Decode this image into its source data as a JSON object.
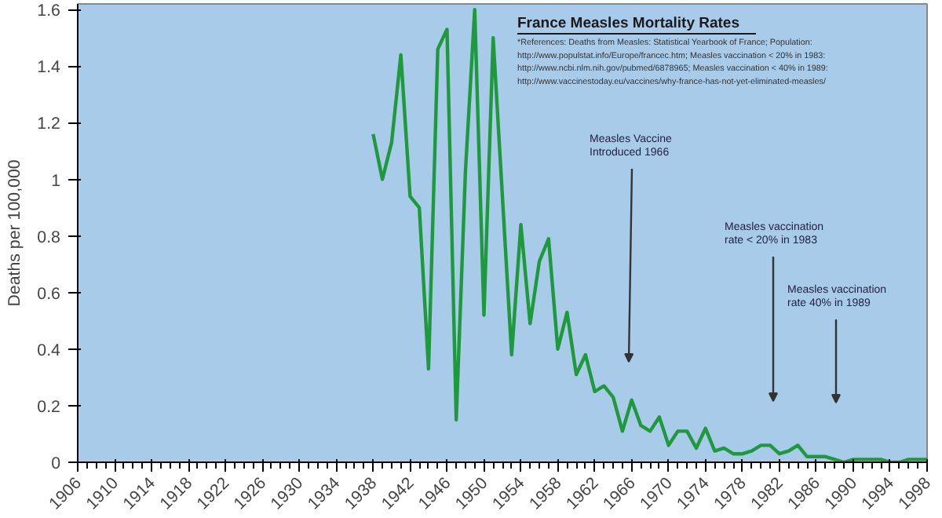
{
  "chart_data": {
    "type": "line",
    "title": "France Measles Mortality Rates",
    "ylabel": "Deaths per 100,000",
    "x": [
      1938,
      1939,
      1940,
      1941,
      1942,
      1943,
      1944,
      1945,
      1946,
      1947,
      1948,
      1949,
      1950,
      1951,
      1953,
      1954,
      1955,
      1956,
      1957,
      1958,
      1959,
      1960,
      1961,
      1962,
      1963,
      1964,
      1965,
      1966,
      1967,
      1968,
      1969,
      1970,
      1971,
      1972,
      1973,
      1974,
      1975,
      1976,
      1977,
      1978,
      1979,
      1980,
      1981,
      1982,
      1983,
      1984,
      1985,
      1986,
      1987,
      1988,
      1989,
      1990,
      1991,
      1992,
      1993,
      1994,
      1995,
      1996,
      1997,
      1998
    ],
    "series": [
      {
        "color": "#1e9a3c",
        "values": [
          1.16,
          1.0,
          1.13,
          1.44,
          0.94,
          0.9,
          0.33,
          1.46,
          1.53,
          0.15,
          1.03,
          1.6,
          0.52,
          1.5,
          0.38,
          0.84,
          0.49,
          0.71,
          0.79,
          0.4,
          0.53,
          0.31,
          0.38,
          0.25,
          0.27,
          0.23,
          0.11,
          0.22,
          0.13,
          0.11,
          0.16,
          0.06,
          0.11,
          0.11,
          0.05,
          0.12,
          0.04,
          0.05,
          0.03,
          0.03,
          0.04,
          0.06,
          0.06,
          0.03,
          0.04,
          0.06,
          0.02,
          0.02,
          0.02,
          0.01,
          0.0,
          0.01,
          0.01,
          0.01,
          0.01,
          0.0,
          0.0,
          0.01,
          0.01,
          0.01
        ]
      }
    ],
    "xlim": [
      1906,
      1998
    ],
    "xticks": [
      1906,
      1910,
      1914,
      1918,
      1922,
      1926,
      1930,
      1934,
      1938,
      1942,
      1946,
      1950,
      1954,
      1958,
      1962,
      1966,
      1970,
      1974,
      1978,
      1982,
      1986,
      1990,
      1994,
      1998
    ],
    "ylim": [
      0,
      1.62
    ],
    "yticks": [
      0,
      0.2,
      0.4,
      0.6,
      0.8,
      {
        "value": 1,
        "label": "1"
      },
      1.2,
      1.4,
      1.6
    ],
    "grid": false,
    "marker": "none",
    "line_style": "solid",
    "annotations": [
      "*References: Deaths from Measles: Statistical Yearbook of France; Population:",
      "http://www.populstat.info/Europe/francec.htm; Measles vaccination < 20% in 1983:",
      "http://www.ncbi.nlm.nih.gov/pubmed/6878965; Measles vaccination < 40% in 1989:",
      "http://www.vaccinestoday.eu/vaccines/why-france-has-not-yet-eliminated-measles/",
      "Measles Vaccine\nIntroduced 1966",
      "Measles vaccination\nrate < 20% in 1983",
      "Measles vaccination\nrate 40% in 1989"
    ]
  }
}
